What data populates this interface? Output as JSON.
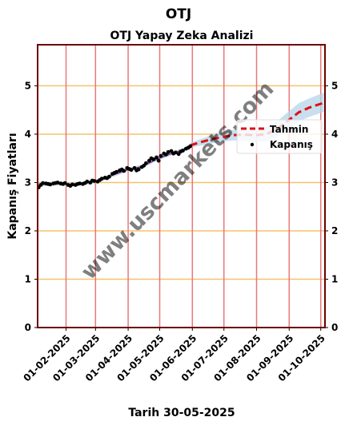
{
  "chart_data": {
    "type": "line",
    "suptitle": "OTJ",
    "title": "OTJ Yapay Zeka Analizi",
    "ylabel": "Kapanış Fiyatları",
    "xlabel": "Tarih 30-05-2025",
    "watermark": "www.uscmarkets.com",
    "ylim": [
      0,
      5.85
    ],
    "yticks": [
      0,
      1,
      2,
      3,
      4,
      5
    ],
    "xlim": [
      "2025-01-05",
      "2025-10-05"
    ],
    "xticks": [
      "2025-02-01",
      "2025-03-01",
      "2025-04-01",
      "2025-05-01",
      "2025-06-01",
      "2025-07-01",
      "2025-08-01",
      "2025-09-01",
      "2025-10-01"
    ],
    "xtick_labels": [
      "01-02-2025",
      "01-03-2025",
      "01-04-2025",
      "01-05-2025",
      "01-06-2025",
      "01-07-2025",
      "01-08-2025",
      "01-09-2025",
      "01-10-2025"
    ],
    "grid": {
      "horizontal_color": "#f5c26b",
      "vertical_color": "#e8787a"
    },
    "legend": {
      "position": "right",
      "entries": [
        "Tahmin",
        "Kapanış"
      ]
    },
    "colors": {
      "forecast": "#dd1111",
      "band": "#b6d4ea",
      "closing": "#000000",
      "fit": "#7b2d8b",
      "frame": "#6b0000"
    },
    "series": [
      {
        "name": "Kapanış",
        "kind": "scatter",
        "x": [
          "2025-01-06",
          "2025-01-08",
          "2025-01-10",
          "2025-01-13",
          "2025-01-15",
          "2025-01-17",
          "2025-01-20",
          "2025-01-22",
          "2025-01-24",
          "2025-01-27",
          "2025-01-29",
          "2025-01-31",
          "2025-02-03",
          "2025-02-05",
          "2025-02-07",
          "2025-02-10",
          "2025-02-12",
          "2025-02-14",
          "2025-02-17",
          "2025-02-19",
          "2025-02-21",
          "2025-02-24",
          "2025-02-26",
          "2025-02-28",
          "2025-03-03",
          "2025-03-05",
          "2025-03-07",
          "2025-03-10",
          "2025-03-12",
          "2025-03-14",
          "2025-03-17",
          "2025-03-19",
          "2025-03-21",
          "2025-03-24",
          "2025-03-26",
          "2025-03-28",
          "2025-03-31",
          "2025-04-02",
          "2025-04-04",
          "2025-04-07",
          "2025-04-09",
          "2025-04-11",
          "2025-04-14",
          "2025-04-16",
          "2025-04-18",
          "2025-04-21",
          "2025-04-23",
          "2025-04-25",
          "2025-04-28",
          "2025-04-30",
          "2025-05-02",
          "2025-05-05",
          "2025-05-07",
          "2025-05-09",
          "2025-05-12",
          "2025-05-14",
          "2025-05-16",
          "2025-05-19",
          "2025-05-21",
          "2025-05-23",
          "2025-05-26",
          "2025-05-28",
          "2025-05-30"
        ],
        "y": [
          2.9,
          2.95,
          2.99,
          2.98,
          2.97,
          2.96,
          2.98,
          2.99,
          3.0,
          2.98,
          2.97,
          2.99,
          2.95,
          2.93,
          2.96,
          2.95,
          2.97,
          2.98,
          2.97,
          2.99,
          3.02,
          3.0,
          3.04,
          3.03,
          3.02,
          3.05,
          3.08,
          3.1,
          3.09,
          3.12,
          3.18,
          3.2,
          3.22,
          3.25,
          3.27,
          3.24,
          3.3,
          3.28,
          3.26,
          3.3,
          3.25,
          3.27,
          3.32,
          3.35,
          3.4,
          3.45,
          3.5,
          3.48,
          3.52,
          3.45,
          3.55,
          3.6,
          3.58,
          3.63,
          3.65,
          3.6,
          3.62,
          3.59,
          3.64,
          3.66,
          3.7,
          3.72,
          3.75
        ]
      },
      {
        "name": "Tahmin",
        "kind": "dashed-line",
        "x": [
          "2025-05-30",
          "2025-06-10",
          "2025-06-20",
          "2025-07-01",
          "2025-07-10",
          "2025-07-20",
          "2025-07-31",
          "2025-08-10",
          "2025-08-20",
          "2025-08-31",
          "2025-09-10",
          "2025-09-20",
          "2025-10-04"
        ],
        "y": [
          3.77,
          3.84,
          3.9,
          3.95,
          3.98,
          3.99,
          3.98,
          4.0,
          4.1,
          4.28,
          4.45,
          4.55,
          4.65
        ],
        "band_low": [
          3.72,
          3.77,
          3.81,
          3.85,
          3.87,
          3.86,
          3.84,
          3.85,
          3.94,
          4.1,
          4.26,
          4.36,
          4.46
        ],
        "band_high": [
          3.82,
          3.91,
          3.99,
          4.05,
          4.09,
          4.12,
          4.12,
          4.15,
          4.26,
          4.46,
          4.64,
          4.74,
          4.86
        ]
      },
      {
        "name": "",
        "kind": "fit-line",
        "x": [
          "2025-01-06",
          "2025-01-20",
          "2025-02-03",
          "2025-02-17",
          "2025-03-03",
          "2025-03-17",
          "2025-03-31",
          "2025-04-14",
          "2025-04-28",
          "2025-05-12",
          "2025-05-30"
        ],
        "y": [
          2.95,
          2.98,
          2.96,
          2.98,
          3.03,
          3.15,
          3.26,
          3.33,
          3.48,
          3.6,
          3.72
        ],
        "band_low": [
          2.91,
          2.94,
          2.92,
          2.94,
          2.99,
          3.11,
          3.22,
          3.29,
          3.44,
          3.56,
          3.68
        ],
        "band_high": [
          2.99,
          3.02,
          3.0,
          3.02,
          3.07,
          3.19,
          3.3,
          3.37,
          3.52,
          3.64,
          3.76
        ]
      }
    ]
  }
}
